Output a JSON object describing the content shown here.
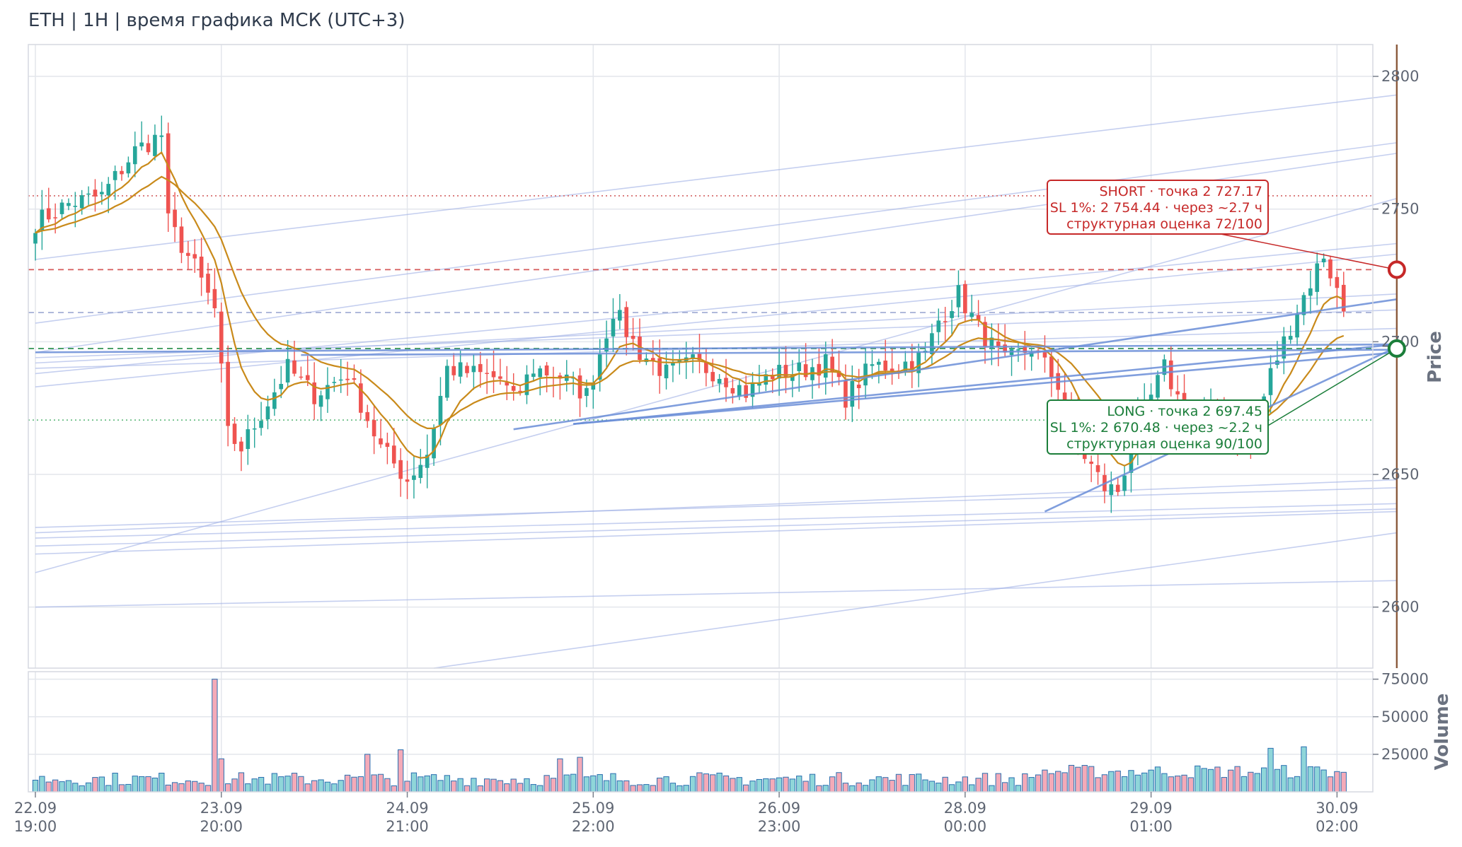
{
  "header": {
    "title": "ETH | 1H | время графика МСК (UTC+3)"
  },
  "colors": {
    "up": "#26a69a",
    "down": "#ef5350",
    "vol_up": "#8fd6d9",
    "vol_down": "#f4aab8",
    "ema": "#c98a1a",
    "trendline": "#6a8ed8",
    "short": "#c62828",
    "long": "#1b7e3a"
  },
  "chart_data": {
    "type": "candlestick",
    "timeframe": "1H",
    "y_label": "Price",
    "volume_label": "Volume",
    "price_ylim": [
      2577,
      2812
    ],
    "volume_ylim": [
      0,
      80000
    ],
    "price_ticks": [
      "2600",
      "2650",
      "2700",
      "2750",
      "2800"
    ],
    "volume_ticks": [
      "25000",
      "50000",
      "75000"
    ],
    "x_ticks": [
      {
        "day": "22.09",
        "time": "19:00"
      },
      {
        "day": "23.09",
        "time": "20:00"
      },
      {
        "day": "24.09",
        "time": "21:00"
      },
      {
        "day": "25.09",
        "time": "22:00"
      },
      {
        "day": "26.09",
        "time": "23:00"
      },
      {
        "day": "28.09",
        "time": "00:00"
      },
      {
        "day": "29.09",
        "time": "01:00"
      },
      {
        "day": "30.09",
        "time": "02:00"
      }
    ],
    "grid": true,
    "anchors": [
      {
        "bar": 0,
        "price": 2745
      },
      {
        "bar": 5,
        "price": 2752
      },
      {
        "bar": 10,
        "price": 2755
      },
      {
        "bar": 15,
        "price": 2772
      },
      {
        "bar": 19,
        "price": 2778
      },
      {
        "bar": 20,
        "price": 2745
      },
      {
        "bar": 24,
        "price": 2728
      },
      {
        "bar": 27,
        "price": 2712
      },
      {
        "bar": 29,
        "price": 2665
      },
      {
        "bar": 31,
        "price": 2660
      },
      {
        "bar": 34,
        "price": 2673
      },
      {
        "bar": 38,
        "price": 2690
      },
      {
        "bar": 42,
        "price": 2680
      },
      {
        "bar": 47,
        "price": 2688
      },
      {
        "bar": 52,
        "price": 2660
      },
      {
        "bar": 56,
        "price": 2648
      },
      {
        "bar": 59,
        "price": 2658
      },
      {
        "bar": 62,
        "price": 2690
      },
      {
        "bar": 66,
        "price": 2688
      },
      {
        "bar": 70,
        "price": 2686
      },
      {
        "bar": 72,
        "price": 2678
      },
      {
        "bar": 75,
        "price": 2690
      },
      {
        "bar": 79,
        "price": 2687
      },
      {
        "bar": 83,
        "price": 2680
      },
      {
        "bar": 87,
        "price": 2712
      },
      {
        "bar": 91,
        "price": 2696
      },
      {
        "bar": 95,
        "price": 2688
      },
      {
        "bar": 99,
        "price": 2692
      },
      {
        "bar": 103,
        "price": 2688
      },
      {
        "bar": 107,
        "price": 2681
      },
      {
        "bar": 111,
        "price": 2688
      },
      {
        "bar": 115,
        "price": 2689
      },
      {
        "bar": 119,
        "price": 2692
      },
      {
        "bar": 122,
        "price": 2679
      },
      {
        "bar": 126,
        "price": 2691
      },
      {
        "bar": 130,
        "price": 2691
      },
      {
        "bar": 134,
        "price": 2695
      },
      {
        "bar": 136,
        "price": 2708
      },
      {
        "bar": 139,
        "price": 2718
      },
      {
        "bar": 142,
        "price": 2705
      },
      {
        "bar": 146,
        "price": 2692
      },
      {
        "bar": 150,
        "price": 2698
      },
      {
        "bar": 154,
        "price": 2684
      },
      {
        "bar": 157,
        "price": 2661
      },
      {
        "bar": 161,
        "price": 2645
      },
      {
        "bar": 163,
        "price": 2644
      },
      {
        "bar": 166,
        "price": 2668
      },
      {
        "bar": 170,
        "price": 2690
      },
      {
        "bar": 174,
        "price": 2668
      },
      {
        "bar": 178,
        "price": 2672
      },
      {
        "bar": 183,
        "price": 2662
      },
      {
        "bar": 186,
        "price": 2688
      },
      {
        "bar": 190,
        "price": 2712
      },
      {
        "bar": 194,
        "price": 2733
      },
      {
        "bar": 197,
        "price": 2712
      }
    ],
    "volume_spikes": [
      {
        "bar": 27,
        "value": 75000
      },
      {
        "bar": 28,
        "value": 22000
      },
      {
        "bar": 50,
        "value": 25000
      },
      {
        "bar": 55,
        "value": 28000
      },
      {
        "bar": 79,
        "value": 22000
      },
      {
        "bar": 82,
        "value": 23000
      },
      {
        "bar": 186,
        "value": 29000
      },
      {
        "bar": 191,
        "value": 30000
      }
    ],
    "ema_fast_offset": [
      2,
      -3,
      4,
      -2,
      3,
      -4,
      2,
      -1
    ],
    "levels": [
      {
        "price": 2755,
        "color": "#d97878",
        "style": "dotted"
      },
      {
        "price": 2727.17,
        "color": "#d65a5a",
        "style": "dashed"
      },
      {
        "price": 2711,
        "color": "#aab4d8",
        "style": "dashed"
      },
      {
        "price": 2697.45,
        "color": "#3f9b5f",
        "style": "dashed"
      },
      {
        "price": 2670.48,
        "color": "#6cbf86",
        "style": "dotted"
      }
    ],
    "trendlines_bold": [
      {
        "from": [
          72,
          2667
        ],
        "to": [
          205,
          2716
        ]
      },
      {
        "from": [
          81,
          2669
        ],
        "to": [
          205,
          2699
        ]
      },
      {
        "from": [
          81,
          2669
        ],
        "to": [
          205,
          2696
        ]
      },
      {
        "from": [
          152,
          2636
        ],
        "to": [
          205,
          2698
        ]
      },
      {
        "from": [
          0,
          2696
        ],
        "to": [
          205,
          2699
        ]
      },
      {
        "from": [
          40,
          2695
        ],
        "to": [
          205,
          2697
        ]
      }
    ],
    "trendlines_thin": [
      {
        "from": [
          0,
          2731
        ],
        "to": [
          205,
          2793
        ]
      },
      {
        "from": [
          0,
          2707
        ],
        "to": [
          205,
          2775
        ]
      },
      {
        "from": [
          0,
          2696
        ],
        "to": [
          205,
          2771
        ]
      },
      {
        "from": [
          0,
          2688
        ],
        "to": [
          205,
          2737
        ]
      },
      {
        "from": [
          0,
          2683
        ],
        "to": [
          205,
          2733
        ]
      },
      {
        "from": [
          0,
          2613
        ],
        "to": [
          205,
          2754
        ]
      },
      {
        "from": [
          60,
          2577
        ],
        "to": [
          205,
          2628
        ]
      },
      {
        "from": [
          0,
          2600
        ],
        "to": [
          205,
          2610
        ]
      },
      {
        "from": [
          0,
          2620
        ],
        "to": [
          205,
          2636
        ]
      },
      {
        "from": [
          0,
          2623
        ],
        "to": [
          205,
          2637
        ]
      },
      {
        "from": [
          0,
          2626
        ],
        "to": [
          205,
          2639
        ]
      },
      {
        "from": [
          0,
          2630
        ],
        "to": [
          205,
          2645
        ]
      },
      {
        "from": [
          0,
          2628
        ],
        "to": [
          205,
          2648
        ]
      },
      {
        "from": [
          0,
          2694
        ],
        "to": [
          205,
          2712
        ]
      },
      {
        "from": [
          0,
          2690
        ],
        "to": [
          205,
          2705
        ]
      },
      {
        "from": [
          0,
          2692
        ],
        "to": [
          205,
          2718
        ]
      }
    ],
    "projection_bar": 205,
    "signals": {
      "short": {
        "line1": "SHORT · точка 2 727.17",
        "line2": "SL 1%: 2 754.44 · через ~2.7 ч",
        "line3": "структурная оценка 72/100",
        "price": 2727.17
      },
      "long": {
        "line1": "LONG · точка 2 697.45",
        "line2": "SL 1%: 2 670.48 · через ~2.2 ч",
        "line3": "структурная оценка 90/100",
        "price": 2697.45
      }
    }
  }
}
